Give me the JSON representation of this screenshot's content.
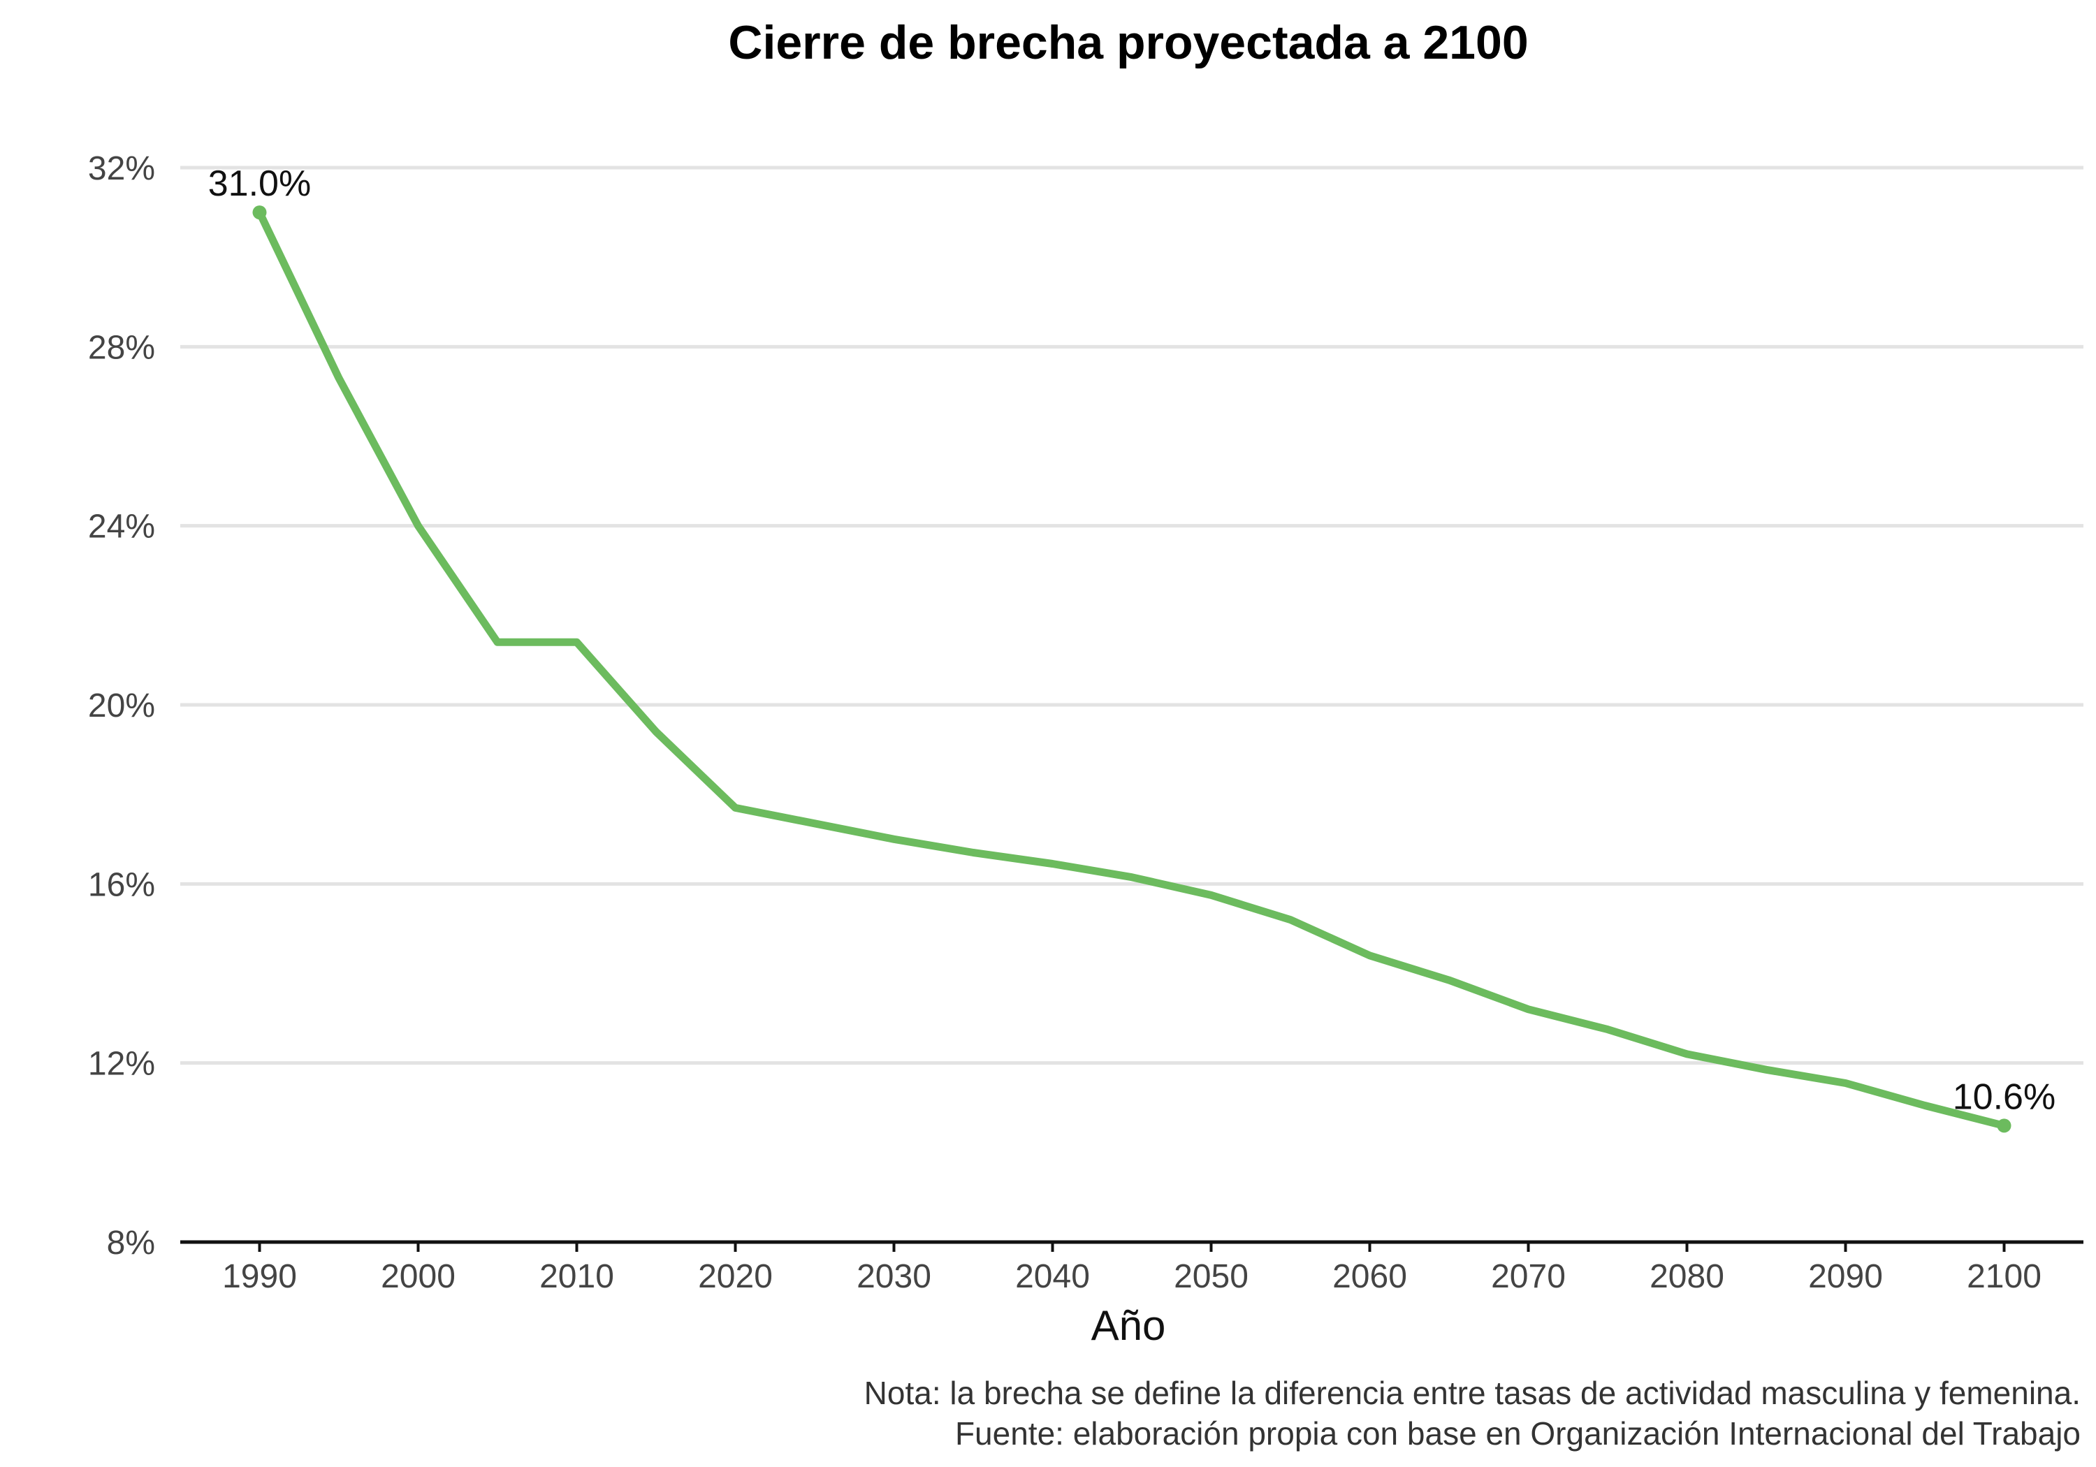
{
  "chart_data": {
    "type": "line",
    "title": "Cierre de brecha proyectada a 2100",
    "xlabel": "Año",
    "ylabel": "",
    "xlim": [
      1985,
      2105
    ],
    "ylim": [
      8,
      32
    ],
    "x_ticks": [
      1990,
      2000,
      2010,
      2020,
      2030,
      2040,
      2050,
      2060,
      2070,
      2080,
      2090,
      2100
    ],
    "y_ticks": [
      8,
      12,
      16,
      20,
      24,
      28,
      32
    ],
    "y_tick_labels": [
      "8%",
      "12%",
      "16%",
      "20%",
      "24%",
      "28%",
      "32%"
    ],
    "grid": "horizontal",
    "line_color": "#6cbb5e",
    "series": [
      {
        "x": [
          1990,
          1995,
          2000,
          2005,
          2010,
          2015,
          2020,
          2025,
          2030,
          2035,
          2040,
          2045,
          2050,
          2055,
          2060,
          2065,
          2070,
          2075,
          2080,
          2085,
          2090,
          2095,
          2100
        ],
        "values": [
          31.0,
          27.3,
          24.0,
          21.4,
          21.4,
          19.4,
          17.7,
          17.35,
          17.0,
          16.7,
          16.45,
          16.15,
          15.75,
          15.2,
          14.4,
          13.85,
          13.2,
          12.75,
          12.2,
          11.85,
          11.55,
          11.05,
          10.6
        ]
      }
    ],
    "annotations": [
      {
        "x": 1990,
        "y": 31.0,
        "text": "31.0%"
      },
      {
        "x": 2100,
        "y": 10.6,
        "text": "10.6%"
      }
    ],
    "caption": [
      "Nota: la brecha se define la diferencia entre tasas de actividad masculina y femenina.",
      "Fuente: elaboración propia con base en Organización Internacional del Trabajo"
    ]
  }
}
